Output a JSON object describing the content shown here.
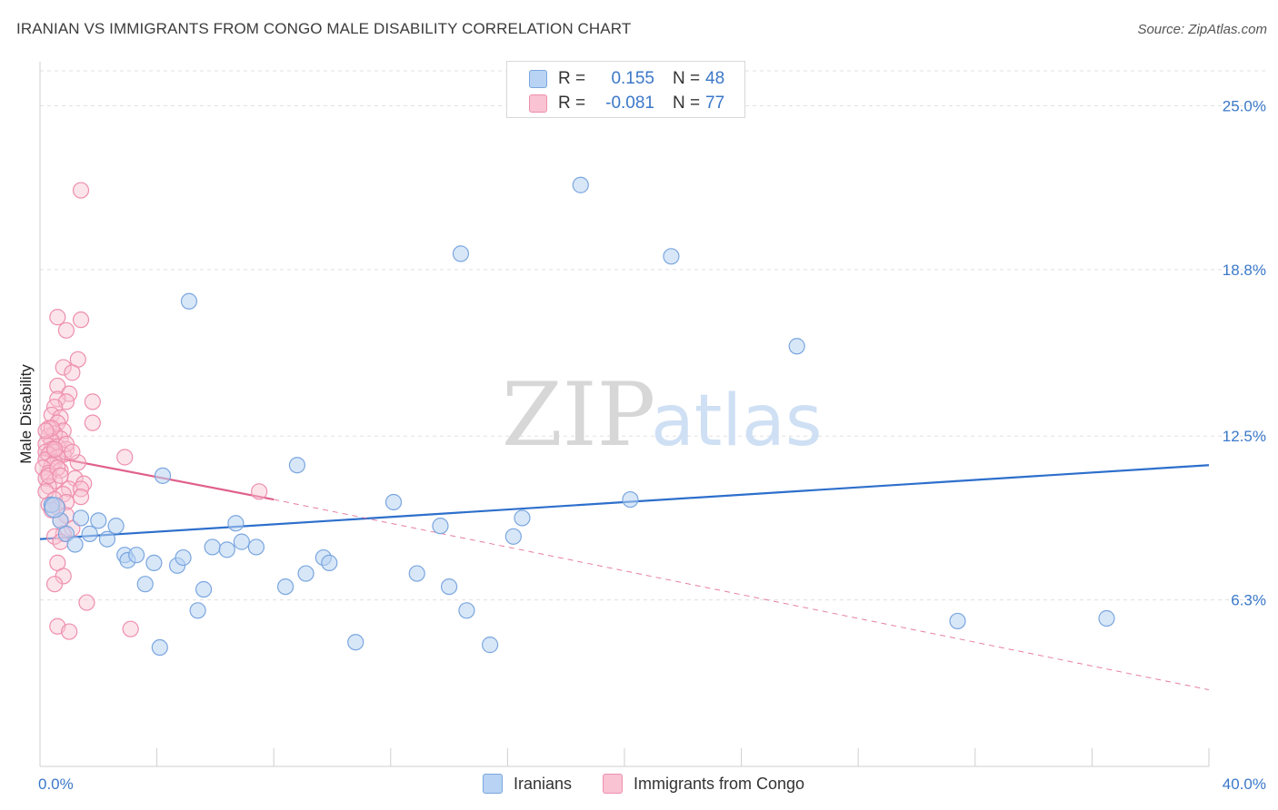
{
  "title": "IRANIAN VS IMMIGRANTS FROM CONGO MALE DISABILITY CORRELATION CHART",
  "source": "Source: ZipAtlas.com",
  "watermark": {
    "zip": "ZIP",
    "atlas": "atlas"
  },
  "legend": {
    "series1": {
      "r_label": "R =",
      "r_value": "0.155",
      "n_label": "N =",
      "n_value": "48"
    },
    "series2": {
      "r_label": "R =",
      "r_value": "-0.081",
      "n_label": "N =",
      "n_value": "77"
    }
  },
  "bottom_legend": {
    "series1": "Iranians",
    "series2": "Immigrants from Congo"
  },
  "colors": {
    "blue_fill": "#b8d3f3",
    "blue_stroke": "#7aa6df",
    "blue_line": "#2d6fcc",
    "pink_fill": "#f9c3d3",
    "pink_stroke": "#ee8fae",
    "pink_line": "#e0608c",
    "grid": "#e0e0e0",
    "axis_text": "#3b78c9"
  },
  "chart_data": {
    "type": "scatter",
    "title": "IRANIAN VS IMMIGRANTS FROM CONGO MALE DISABILITY CORRELATION CHART",
    "xlabel": "",
    "ylabel": "Male Disability",
    "xlim": [
      0,
      40
    ],
    "ylim": [
      0,
      26.2
    ],
    "x_tick_labels": [
      {
        "value": 0,
        "label": "0.0%"
      },
      {
        "value": 40,
        "label": "40.0%"
      }
    ],
    "y_tick_labels": [
      {
        "value": 6.3,
        "label": "6.3%"
      },
      {
        "value": 12.5,
        "label": "12.5%"
      },
      {
        "value": 18.8,
        "label": "18.8%"
      },
      {
        "value": 25.0,
        "label": "25.0%"
      }
    ],
    "series": [
      {
        "name": "Iranians",
        "color": "blue",
        "trend": {
          "x": [
            0,
            40
          ],
          "y": [
            8.6,
            11.4
          ],
          "style": "solid"
        },
        "points": [
          [
            0.4,
            9.9
          ],
          [
            0.7,
            9.3
          ],
          [
            0.9,
            8.8
          ],
          [
            1.2,
            8.4
          ],
          [
            1.4,
            9.4
          ],
          [
            1.7,
            8.8
          ],
          [
            2.0,
            9.3
          ],
          [
            2.3,
            8.6
          ],
          [
            2.6,
            9.1
          ],
          [
            2.9,
            8.0
          ],
          [
            3.0,
            7.8
          ],
          [
            3.3,
            8.0
          ],
          [
            3.6,
            6.9
          ],
          [
            3.9,
            7.7
          ],
          [
            4.1,
            4.5
          ],
          [
            4.2,
            11.0
          ],
          [
            4.7,
            7.6
          ],
          [
            4.9,
            7.9
          ],
          [
            5.1,
            17.6
          ],
          [
            5.4,
            5.9
          ],
          [
            5.6,
            6.7
          ],
          [
            5.9,
            8.3
          ],
          [
            6.4,
            8.2
          ],
          [
            6.7,
            9.2
          ],
          [
            6.9,
            8.5
          ],
          [
            7.4,
            8.3
          ],
          [
            8.4,
            6.8
          ],
          [
            8.8,
            11.4
          ],
          [
            9.1,
            7.3
          ],
          [
            9.7,
            7.9
          ],
          [
            9.9,
            7.7
          ],
          [
            10.8,
            4.7
          ],
          [
            12.1,
            10.0
          ],
          [
            12.9,
            7.3
          ],
          [
            13.7,
            9.1
          ],
          [
            14.0,
            6.8
          ],
          [
            14.4,
            19.4
          ],
          [
            14.6,
            5.9
          ],
          [
            15.4,
            4.6
          ],
          [
            16.2,
            8.7
          ],
          [
            16.5,
            9.4
          ],
          [
            18.5,
            22.0
          ],
          [
            20.2,
            10.1
          ],
          [
            21.6,
            19.3
          ],
          [
            25.9,
            15.9
          ],
          [
            31.4,
            5.5
          ],
          [
            36.5,
            5.6
          ],
          [
            0.5,
            9.8
          ]
        ]
      },
      {
        "name": "Immigrants from Congo",
        "color": "pink",
        "trend": {
          "x": [
            0,
            8.0
          ],
          "y": [
            11.8,
            10.1
          ],
          "style": "solid",
          "extension": {
            "x": [
              8.0,
              40
            ],
            "y": [
              10.1,
              2.9
            ],
            "style": "dashed"
          }
        },
        "points": [
          [
            1.4,
            21.8
          ],
          [
            0.6,
            17.0
          ],
          [
            1.4,
            16.9
          ],
          [
            0.9,
            16.5
          ],
          [
            1.3,
            15.4
          ],
          [
            0.8,
            15.1
          ],
          [
            1.1,
            14.9
          ],
          [
            0.6,
            14.4
          ],
          [
            1.0,
            14.1
          ],
          [
            0.6,
            13.9
          ],
          [
            1.8,
            13.8
          ],
          [
            0.9,
            13.8
          ],
          [
            0.5,
            13.6
          ],
          [
            0.4,
            13.3
          ],
          [
            0.7,
            13.2
          ],
          [
            1.8,
            13.0
          ],
          [
            0.6,
            13.0
          ],
          [
            0.3,
            12.8
          ],
          [
            0.8,
            12.7
          ],
          [
            0.5,
            12.6
          ],
          [
            0.3,
            12.5
          ],
          [
            0.7,
            12.4
          ],
          [
            0.4,
            12.3
          ],
          [
            0.2,
            12.2
          ],
          [
            0.6,
            12.1
          ],
          [
            0.9,
            12.0
          ],
          [
            0.4,
            12.0
          ],
          [
            0.2,
            11.9
          ],
          [
            0.5,
            11.9
          ],
          [
            0.8,
            11.8
          ],
          [
            0.3,
            11.8
          ],
          [
            2.9,
            11.7
          ],
          [
            0.6,
            11.7
          ],
          [
            0.2,
            11.6
          ],
          [
            0.5,
            11.5
          ],
          [
            1.3,
            11.5
          ],
          [
            0.4,
            11.4
          ],
          [
            0.1,
            11.3
          ],
          [
            0.7,
            11.2
          ],
          [
            0.3,
            11.1
          ],
          [
            0.2,
            10.9
          ],
          [
            1.2,
            10.9
          ],
          [
            0.5,
            10.8
          ],
          [
            1.5,
            10.7
          ],
          [
            0.3,
            10.6
          ],
          [
            1.0,
            10.5
          ],
          [
            1.4,
            10.5
          ],
          [
            0.2,
            10.4
          ],
          [
            7.5,
            10.4
          ],
          [
            0.8,
            10.3
          ],
          [
            1.4,
            10.2
          ],
          [
            0.5,
            10.1
          ],
          [
            0.9,
            10.0
          ],
          [
            0.3,
            9.9
          ],
          [
            0.6,
            9.8
          ],
          [
            0.4,
            9.7
          ],
          [
            0.9,
            9.5
          ],
          [
            0.7,
            9.3
          ],
          [
            1.1,
            9.0
          ],
          [
            0.8,
            8.8
          ],
          [
            0.5,
            8.7
          ],
          [
            0.7,
            8.5
          ],
          [
            0.6,
            7.7
          ],
          [
            0.8,
            7.2
          ],
          [
            0.5,
            6.9
          ],
          [
            1.6,
            6.2
          ],
          [
            0.6,
            5.3
          ],
          [
            1.0,
            5.1
          ],
          [
            3.1,
            5.2
          ],
          [
            0.3,
            11.0
          ],
          [
            0.4,
            12.8
          ],
          [
            0.6,
            11.3
          ],
          [
            0.9,
            12.2
          ],
          [
            0.2,
            12.7
          ],
          [
            0.7,
            11.0
          ],
          [
            1.1,
            11.9
          ],
          [
            0.5,
            12.0
          ]
        ]
      }
    ]
  }
}
